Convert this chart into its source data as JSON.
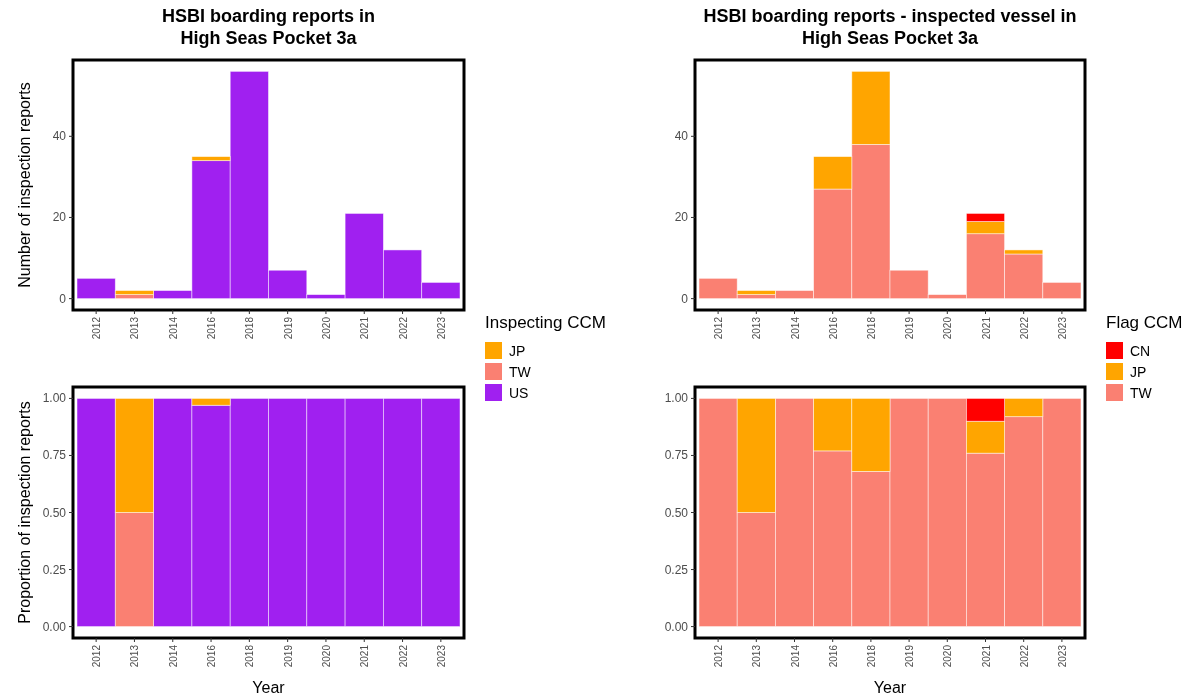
{
  "chart_data": [
    {
      "type": "bar",
      "title": "HSBI boarding reports in\nHigh Seas Pocket 3a",
      "ylabel": "Number of inspection reports",
      "categories": [
        "2012",
        "2013",
        "2014",
        "2016",
        "2018",
        "2019",
        "2020",
        "2021",
        "2022",
        "2023"
      ],
      "stacked": true,
      "legend": "right",
      "legend_title": "Inspecting CCM",
      "ylim": [
        -2.8,
        58.8
      ],
      "yticks": [
        0,
        20,
        40
      ],
      "series": [
        {
          "name": "US",
          "color": "#a020f0",
          "values": [
            5,
            0,
            2,
            34,
            56,
            7,
            1,
            21,
            12,
            4
          ]
        },
        {
          "name": "TW",
          "color": "#fa8072",
          "values": [
            0,
            1,
            0,
            0,
            0,
            0,
            0,
            0,
            0,
            0
          ]
        },
        {
          "name": "JP",
          "color": "#ffa500",
          "values": [
            0,
            1,
            0,
            1,
            0,
            0,
            0,
            0,
            0,
            0
          ]
        }
      ]
    },
    {
      "type": "bar",
      "title": "HSBI boarding reports - inspected vessel in\nHigh Seas Pocket 3a",
      "categories": [
        "2012",
        "2013",
        "2014",
        "2016",
        "2018",
        "2019",
        "2020",
        "2021",
        "2022",
        "2023"
      ],
      "stacked": true,
      "legend": "right",
      "legend_title": "Flag CCM",
      "ylim": [
        -2.8,
        58.8
      ],
      "yticks": [
        0,
        20,
        40
      ],
      "series": [
        {
          "name": "TW",
          "color": "#fa8072",
          "values": [
            5,
            1,
            2,
            27,
            38,
            7,
            1,
            16,
            11,
            4
          ]
        },
        {
          "name": "JP",
          "color": "#ffa500",
          "values": [
            0,
            1,
            0,
            8,
            18,
            0,
            0,
            3,
            1,
            0
          ]
        },
        {
          "name": "CN",
          "color": "#ff0000",
          "values": [
            0,
            0,
            0,
            0,
            0,
            0,
            0,
            2,
            0,
            0
          ]
        }
      ]
    },
    {
      "type": "bar",
      "xlabel": "Year",
      "ylabel": "Proportion of inspection reports",
      "categories": [
        "2012",
        "2013",
        "2014",
        "2016",
        "2018",
        "2019",
        "2020",
        "2021",
        "2022",
        "2023"
      ],
      "stacked": true,
      "ylim": [
        -0.05,
        1.05
      ],
      "yticks": [
        {
          "value": 0,
          "label": "0.00"
        },
        {
          "value": 0.25,
          "label": "0.25"
        },
        {
          "value": 0.5,
          "label": "0.50"
        },
        {
          "value": 0.75,
          "label": "0.75"
        },
        {
          "value": 1,
          "label": "1.00"
        }
      ],
      "series": [
        {
          "color": "#a020f0",
          "values": [
            1,
            0,
            1,
            0.97,
            1,
            1,
            1,
            1,
            1,
            1
          ]
        },
        {
          "color": "#fa8072",
          "values": [
            0,
            0.5,
            0,
            0,
            0,
            0,
            0,
            0,
            0,
            0
          ]
        },
        {
          "color": "#ffa500",
          "values": [
            0,
            0.5,
            0,
            0.03,
            0,
            0,
            0,
            0,
            0,
            0
          ]
        }
      ]
    },
    {
      "type": "bar",
      "xlabel": "Year",
      "categories": [
        "2012",
        "2013",
        "2014",
        "2016",
        "2018",
        "2019",
        "2020",
        "2021",
        "2022",
        "2023"
      ],
      "stacked": true,
      "ylim": [
        -0.05,
        1.05
      ],
      "yticks": [
        {
          "value": 0,
          "label": "0.00"
        },
        {
          "value": 0.25,
          "label": "0.25"
        },
        {
          "value": 0.5,
          "label": "0.50"
        },
        {
          "value": 0.75,
          "label": "0.75"
        },
        {
          "value": 1,
          "label": "1.00"
        }
      ],
      "series": [
        {
          "color": "#fa8072",
          "values": [
            1,
            0.5,
            1,
            0.77,
            0.68,
            1,
            1,
            0.76,
            0.92,
            1
          ]
        },
        {
          "color": "#ffa500",
          "values": [
            0,
            0.5,
            0,
            0.23,
            0.32,
            0,
            0,
            0.14,
            0.08,
            0
          ]
        },
        {
          "color": "#ff0000",
          "values": [
            0,
            0,
            0,
            0,
            0,
            0,
            0,
            0.1,
            0,
            0
          ]
        }
      ]
    }
  ]
}
